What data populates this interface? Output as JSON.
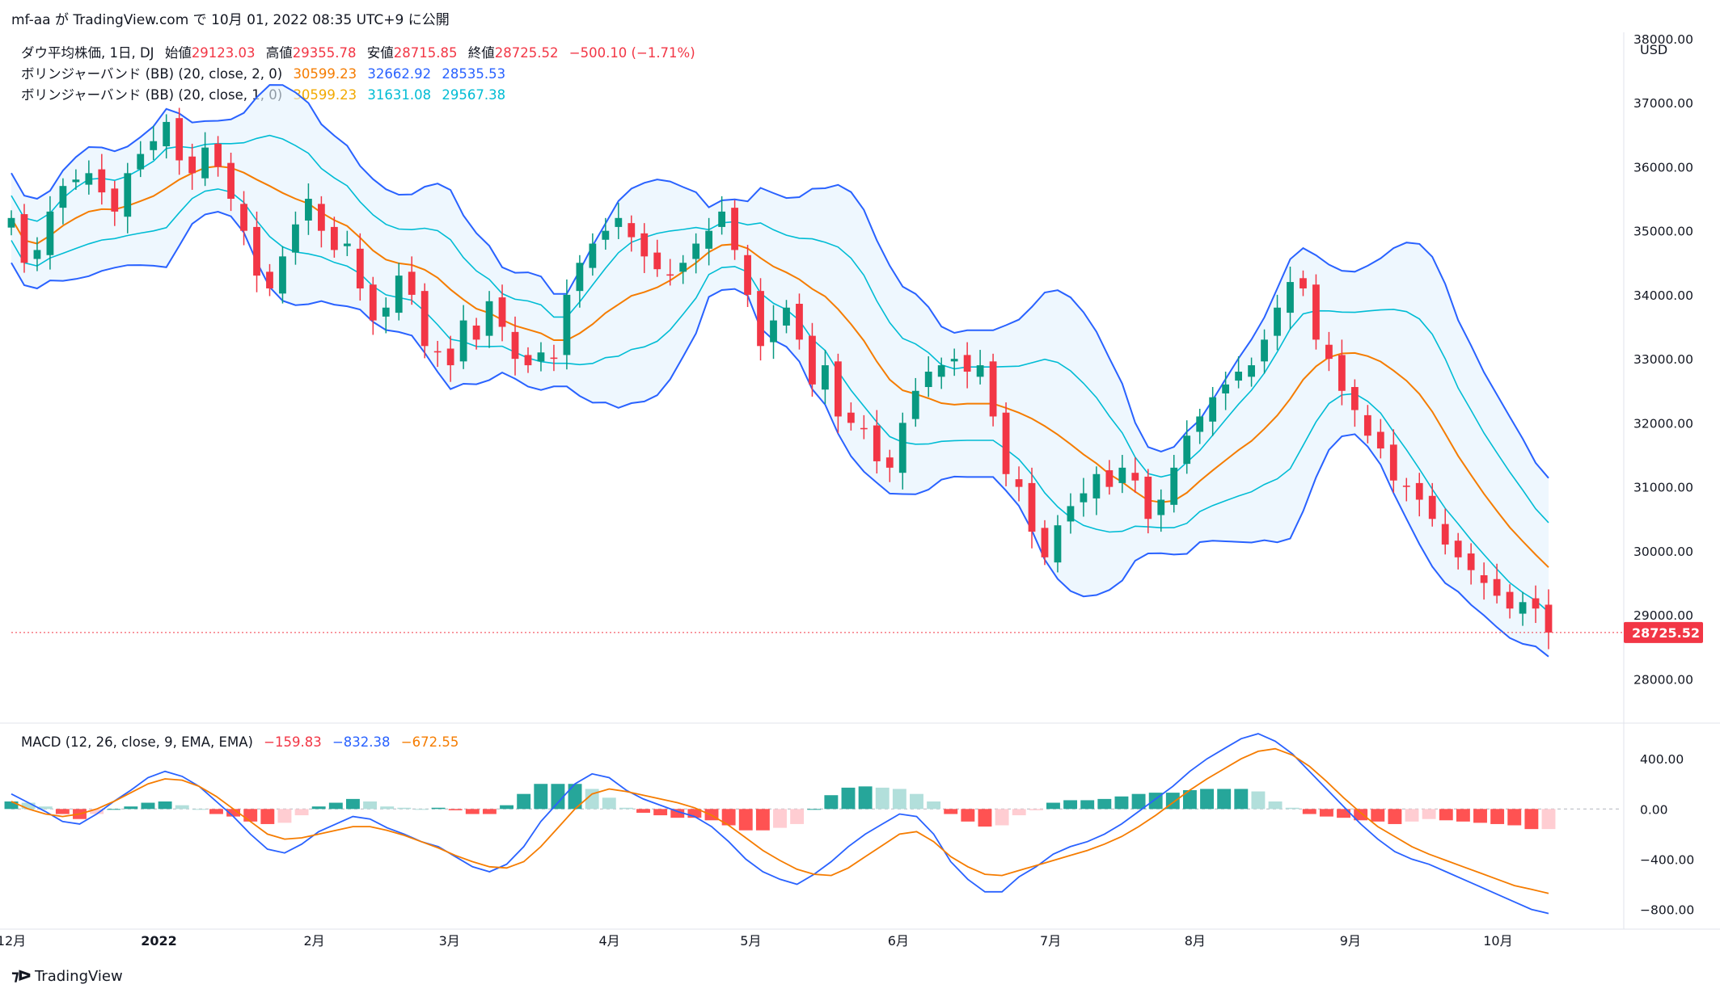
{
  "header": {
    "text": "mf-aa が TradingView.com で 10月 01, 2022 08:35 UTC+9 に公開"
  },
  "legend": {
    "main": {
      "symbol": "ダウ平均株価, 1日, DJ",
      "open_label": "始値",
      "open": "29123.03",
      "high_label": "高値",
      "high": "29355.78",
      "low_label": "安値",
      "low": "28715.85",
      "close_label": "終値",
      "close": "28725.52",
      "change": "−500.10 (−1.71%)"
    },
    "bb2": {
      "name": "ボリンジャーバンド (BB) (20, close, 2, 0)",
      "basis": "30599.23",
      "upper": "32662.92",
      "lower": "28535.53"
    },
    "bb1": {
      "name": "ボリンジャーバンド (BB) (20, close, 1, 0)",
      "basis": "30599.23",
      "upper": "31631.08",
      "lower": "29567.38"
    },
    "macd": {
      "name": "MACD (12, 26, close, 9, EMA, EMA)",
      "hist": "−159.83",
      "macd": "−832.38",
      "signal": "−672.55"
    }
  },
  "price_axis": {
    "currency": "USD",
    "last_price_label": "28725.52"
  },
  "brand": {
    "name": "TradingView"
  },
  "colors": {
    "up": "#089981",
    "down": "#f23645",
    "basis": "#f57c00",
    "band2": "#2962ff",
    "band1": "#00bcd4",
    "fill": "#e3f2fd",
    "macd_line": "#2962ff",
    "signal_line": "#f57c00",
    "hist_up_strong": "#26a69a",
    "hist_up_weak": "#b2dfdb",
    "hist_dn_strong": "#ff5252",
    "hist_dn_weak": "#ffcdd2"
  },
  "chart_data": [
    {
      "type": "candlestick",
      "title": "ダウ平均株価, 1日, DJ",
      "x_tick_labels": [
        "12月",
        "2022",
        "2月",
        "3月",
        "4月",
        "5月",
        "6月",
        "7月",
        "8月",
        "9月",
        "10月"
      ],
      "y_tick_labels": [
        "28000.00",
        "29000.00",
        "30000.00",
        "31000.00",
        "32000.00",
        "33000.00",
        "34000.00",
        "35000.00",
        "36000.00",
        "37000.00",
        "38000.00"
      ],
      "ylim": [
        27500,
        38100
      ],
      "close_series": [
        35200,
        34500,
        34700,
        35300,
        35700,
        35800,
        35900,
        35600,
        35300,
        35900,
        36200,
        36400,
        36700,
        36100,
        35900,
        36300,
        36000,
        35500,
        35000,
        34300,
        34100,
        34600,
        35100,
        35500,
        35000,
        34700,
        34800,
        34100,
        33600,
        33800,
        34300,
        34000,
        33200,
        33100,
        32900,
        33600,
        33300,
        33900,
        33500,
        33000,
        32900,
        33100,
        33000,
        34000,
        34500,
        34800,
        35000,
        35200,
        34900,
        34600,
        34400,
        34300,
        34500,
        34800,
        35000,
        35300,
        34700,
        34000,
        33200,
        33600,
        33800,
        33300,
        32600,
        32900,
        32100,
        32000,
        31900,
        31400,
        31300,
        32000,
        32500,
        32800,
        32900,
        33000,
        32800,
        32900,
        32100,
        31200,
        31000,
        30300,
        29900,
        30400,
        30700,
        30900,
        31200,
        31000,
        31300,
        31100,
        30500,
        30800,
        31300,
        31800,
        32100,
        32400,
        32600,
        32800,
        32900,
        33300,
        33800,
        34200,
        34100,
        33300,
        33000,
        32500,
        32200,
        31800,
        31600,
        31100,
        31000,
        30800,
        30500,
        30100,
        29900,
        29700,
        29500,
        29300,
        29100,
        29200,
        29100,
        28725.52
      ],
      "y_unit": "USD"
    },
    {
      "type": "line",
      "title": "MACD (12, 26, close, 9, EMA, EMA)",
      "y_tick_labels": [
        "400.00",
        "0.00",
        "−400.00",
        "−800.00"
      ],
      "ylim": [
        -880,
        620
      ],
      "series": [
        {
          "name": "MACD",
          "values": [
            120,
            50,
            -20,
            -100,
            -120,
            -40,
            60,
            150,
            250,
            300,
            260,
            180,
            60,
            -60,
            -200,
            -320,
            -350,
            -280,
            -180,
            -120,
            -60,
            -80,
            -150,
            -200,
            -260,
            -300,
            -380,
            -460,
            -500,
            -440,
            -300,
            -100,
            50,
            200,
            280,
            250,
            150,
            80,
            30,
            -20,
            -60,
            -140,
            -260,
            -400,
            -500,
            -560,
            -600,
            -520,
            -420,
            -300,
            -200,
            -120,
            -40,
            -60,
            -200,
            -420,
            -560,
            -660,
            -660,
            -540,
            -460,
            -360,
            -300,
            -260,
            -200,
            -120,
            -20,
            80,
            180,
            300,
            400,
            480,
            560,
            600,
            540,
            440,
            300,
            160,
            20,
            -120,
            -240,
            -340,
            -400,
            -440,
            -500,
            -560,
            -620,
            -680,
            -740,
            -800,
            -832.38
          ]
        },
        {
          "name": "Signal",
          "values": [
            60,
            0,
            -40,
            -60,
            -40,
            0,
            60,
            130,
            200,
            240,
            230,
            180,
            100,
            0,
            -100,
            -200,
            -240,
            -230,
            -200,
            -170,
            -140,
            -140,
            -170,
            -210,
            -260,
            -310,
            -370,
            -420,
            -460,
            -470,
            -420,
            -300,
            -150,
            0,
            120,
            160,
            140,
            110,
            80,
            50,
            10,
            -50,
            -130,
            -230,
            -330,
            -410,
            -480,
            -520,
            -530,
            -470,
            -380,
            -290,
            -200,
            -180,
            -260,
            -380,
            -460,
            -520,
            -530,
            -490,
            -450,
            -410,
            -370,
            -330,
            -280,
            -220,
            -140,
            -50,
            50,
            150,
            240,
            320,
            400,
            460,
            480,
            430,
            340,
            220,
            90,
            -30,
            -140,
            -220,
            -300,
            -360,
            -410,
            -460,
            -510,
            -560,
            -610,
            -640,
            -672.55
          ]
        }
      ]
    }
  ]
}
